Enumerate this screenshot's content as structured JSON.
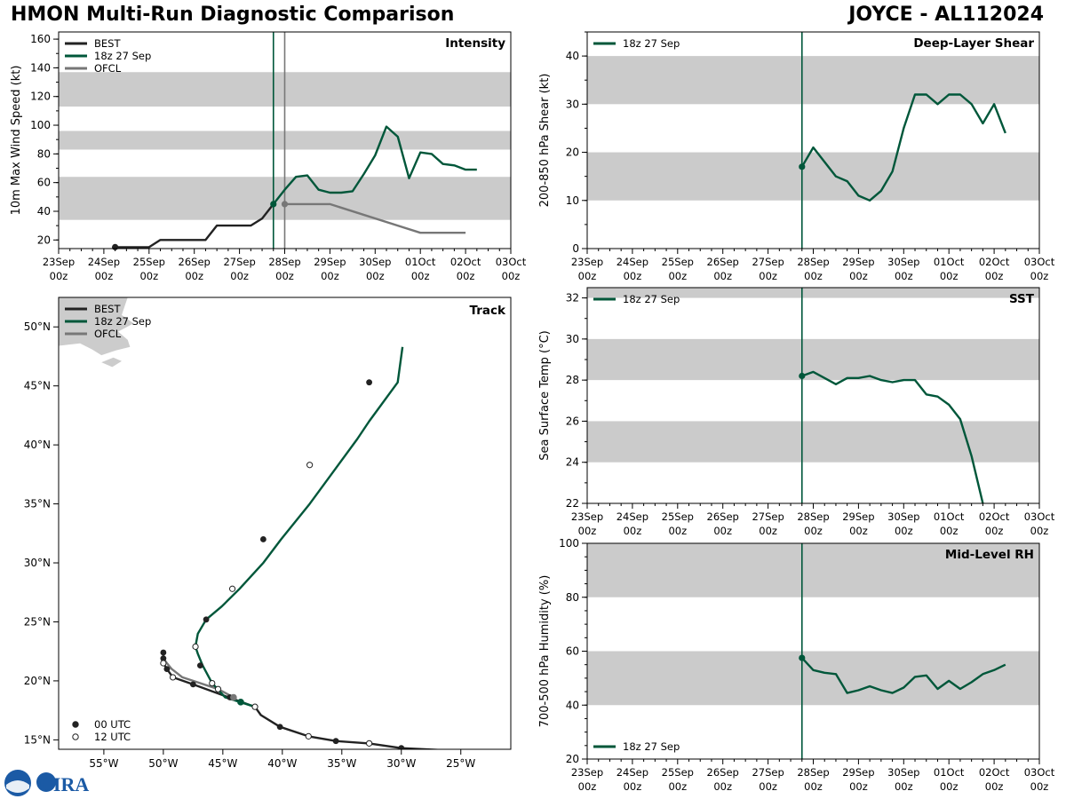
{
  "header": {
    "title_left": "HMON Multi-Run Diagnostic Comparison",
    "title_right": "JOYCE - AL112024"
  },
  "colors": {
    "best": "#222222",
    "run": "#00573a",
    "ofcl": "#777777",
    "band": "#cbcbcb"
  },
  "logo": {
    "text": "CIRA"
  },
  "time_axis": {
    "day_labels": [
      "23Sep",
      "24Sep",
      "25Sep",
      "26Sep",
      "27Sep",
      "28Sep",
      "29Sep",
      "30Sep",
      "01Oct",
      "02Oct",
      "03Oct"
    ],
    "hour_label": "00z",
    "init_marker_day": 4.75,
    "ofcl_marker_day": 5.0
  },
  "chart_data": [
    {
      "id": "intensity",
      "type": "line",
      "title": "Intensity",
      "ylabel": "10m Max Wind Speed (kt)",
      "ylim": [
        14,
        165
      ],
      "yticks": [
        20,
        40,
        60,
        80,
        100,
        120,
        140,
        160
      ],
      "bands": [
        [
          34,
          64
        ],
        [
          83,
          96
        ],
        [
          113,
          137
        ]
      ],
      "legend": [
        "BEST",
        "18z 27 Sep",
        "OFCL"
      ],
      "series": [
        {
          "name": "BEST",
          "x": [
            1.25,
            2,
            2.25,
            2.5,
            3,
            3.25,
            3.5,
            4,
            4.25,
            4.5,
            4.75
          ],
          "y": [
            15,
            15,
            20,
            20,
            20,
            20,
            30,
            30,
            30,
            35,
            45
          ]
        },
        {
          "name": "18z 27 Sep",
          "x": [
            4.75,
            5,
            5.25,
            5.5,
            5.75,
            6,
            6.25,
            6.5,
            6.75,
            7,
            7.25,
            7.5,
            7.75,
            8,
            8.25,
            8.5,
            8.75,
            9,
            9.25
          ],
          "y": [
            45,
            55,
            64,
            65,
            55,
            53,
            53,
            54,
            66,
            79,
            99,
            92,
            63,
            81,
            80,
            73,
            72,
            69,
            69
          ]
        },
        {
          "name": "OFCL",
          "x": [
            5,
            6,
            8,
            9
          ],
          "y": [
            45,
            45,
            25,
            25
          ]
        }
      ]
    },
    {
      "id": "shear",
      "type": "line",
      "title": "Deep-Layer Shear",
      "ylabel": "200-850 hPa Shear (kt)",
      "ylim": [
        0,
        45
      ],
      "yticks": [
        0,
        10,
        20,
        30,
        40
      ],
      "bands": [
        [
          10,
          20
        ],
        [
          30,
          40
        ]
      ],
      "legend": [
        "18z 27 Sep"
      ],
      "series": [
        {
          "name": "18z 27 Sep",
          "x": [
            4.75,
            5,
            5.25,
            5.5,
            5.75,
            6,
            6.25,
            6.5,
            6.75,
            7,
            7.25,
            7.5,
            7.75,
            8,
            8.25,
            8.5,
            8.75,
            9,
            9.25
          ],
          "y": [
            17,
            21,
            18,
            15,
            14,
            11,
            10,
            12,
            16,
            25,
            32,
            32,
            30,
            32,
            32,
            30,
            26,
            30,
            24
          ]
        }
      ]
    },
    {
      "id": "sst",
      "type": "line",
      "title": "SST",
      "ylabel": "Sea Surface Temp (°C)",
      "ylim": [
        22,
        32.5
      ],
      "yticks": [
        22,
        24,
        26,
        28,
        30,
        32
      ],
      "bands": [
        [
          24,
          26
        ],
        [
          28,
          30
        ],
        [
          32,
          34
        ]
      ],
      "legend": [
        "18z 27 Sep"
      ],
      "series": [
        {
          "name": "18z 27 Sep",
          "x": [
            4.75,
            5,
            5.25,
            5.5,
            5.75,
            6,
            6.25,
            6.5,
            6.75,
            7,
            7.25,
            7.5,
            7.75,
            8,
            8.25,
            8.5,
            8.75
          ],
          "y": [
            28.2,
            28.4,
            28.1,
            27.8,
            28.1,
            28.1,
            28.2,
            28.0,
            27.9,
            28.0,
            28.0,
            27.3,
            27.2,
            26.8,
            26.1,
            24.3,
            22.0
          ]
        }
      ]
    },
    {
      "id": "rh",
      "type": "line",
      "title": "Mid-Level RH",
      "ylabel": "700-500 hPa Humidity (%)",
      "ylim": [
        20,
        100
      ],
      "yticks": [
        20,
        40,
        60,
        80,
        100
      ],
      "bands": [
        [
          40,
          60
        ],
        [
          80,
          100
        ]
      ],
      "legend": [
        "18z 27 Sep"
      ],
      "series": [
        {
          "name": "18z 27 Sep",
          "x": [
            4.75,
            5,
            5.25,
            5.5,
            5.75,
            6,
            6.25,
            6.5,
            6.75,
            7,
            7.25,
            7.5,
            7.75,
            8,
            8.25,
            8.5,
            8.75,
            9,
            9.25
          ],
          "y": [
            57.5,
            53,
            52,
            51.5,
            44.5,
            45.5,
            47,
            45.5,
            44.5,
            46.5,
            50.5,
            51,
            46,
            49,
            46,
            48.5,
            51.5,
            53,
            55
          ]
        }
      ]
    },
    {
      "id": "track",
      "type": "scatter",
      "title": "Track",
      "xlabel_ticks": [
        "55°W",
        "50°W",
        "45°W",
        "40°W",
        "35°W",
        "30°W",
        "25°W"
      ],
      "ylabel_ticks": [
        "15°N",
        "20°N",
        "25°N",
        "30°N",
        "35°N",
        "40°N",
        "45°N",
        "50°N"
      ],
      "lon_ticks": [
        -55,
        -50,
        -45,
        -40,
        -35,
        -30,
        -25
      ],
      "lat_ticks": [
        15,
        20,
        25,
        30,
        35,
        40,
        45,
        50
      ],
      "xlim": [
        -58.8,
        -20.8
      ],
      "ylim": [
        14.2,
        52.5
      ],
      "legend": [
        "BEST",
        "18z 27 Sep",
        "OFCL"
      ],
      "marker_legend": [
        "00 UTC",
        "12 UTC"
      ],
      "series": [
        {
          "name": "BEST",
          "lon": [
            -26,
            -30,
            -32.7,
            -35.5,
            -37.8,
            -40.2,
            -41.8,
            -42.3,
            -44.5,
            -47.5,
            -49.2,
            -49.7,
            -50,
            -50
          ],
          "lat": [
            14.1,
            14.3,
            14.7,
            14.9,
            15.3,
            16.1,
            17.1,
            17.8,
            18.6,
            19.7,
            20.3,
            21.0,
            21.5,
            22.4
          ]
        },
        {
          "name": "OFCL",
          "lon": [
            -44.1,
            -45.4,
            -48.4,
            -49.3,
            -49.7,
            -50,
            -50
          ],
          "lat": [
            18.6,
            19.3,
            20.3,
            21.0,
            21.5,
            21.9,
            22.4
          ]
        },
        {
          "name": "18z 27 Sep",
          "lon": [
            -43.5,
            -42.3,
            -44.8,
            -45.9,
            -46.7,
            -47.1,
            -47.3,
            -47.1,
            -46.4,
            -45.1,
            -43.6,
            -41.6,
            -40.1,
            -37.7,
            -35.3,
            -33.7,
            -32.7,
            -30.3,
            -29.9
          ],
          "lat": [
            18.2,
            17.8,
            18.6,
            19.8,
            21.3,
            22.3,
            22.9,
            24.0,
            25.2,
            26.3,
            27.8,
            30.0,
            32.0,
            35.0,
            38.3,
            40.5,
            42.0,
            45.3,
            48.3
          ]
        }
      ],
      "markers_00utc": [
        [
          -40.2,
          16.1
        ],
        [
          -35.5,
          14.9
        ],
        [
          -30,
          14.3
        ],
        [
          -44.4,
          18.6
        ],
        [
          -47.5,
          19.7
        ],
        [
          -49.7,
          21.0
        ],
        [
          -50,
          21.9
        ],
        [
          -50,
          22.4
        ],
        [
          -46.9,
          21.3
        ],
        [
          -46.4,
          25.2
        ],
        [
          -41.6,
          32.0
        ],
        [
          -32.7,
          45.3
        ]
      ],
      "markers_12utc": [
        [
          -42.3,
          17.8
        ],
        [
          -37.8,
          15.3
        ],
        [
          -32.7,
          14.7
        ],
        [
          -45.4,
          19.3
        ],
        [
          -49.2,
          20.3
        ],
        [
          -50,
          21.5
        ],
        [
          -45.9,
          19.8
        ],
        [
          -47.3,
          22.9
        ],
        [
          -44.2,
          27.8
        ],
        [
          -37.7,
          38.3
        ]
      ],
      "marker_run": [
        -43.5,
        18.2
      ],
      "marker_ofcl": [
        -44.1,
        18.6
      ]
    }
  ]
}
